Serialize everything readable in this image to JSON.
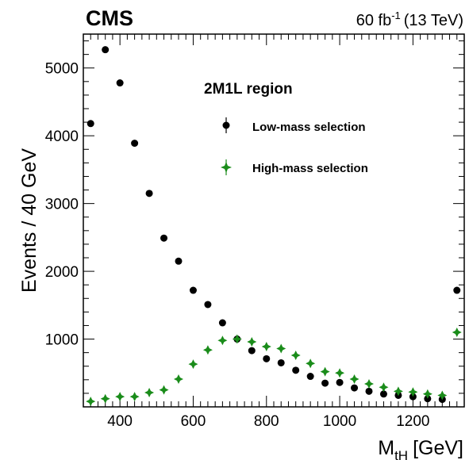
{
  "header": {
    "experiment": "CMS",
    "lumi_value": "60 fb",
    "lumi_exp": "-1",
    "energy": "(13 TeV)"
  },
  "chart_data": {
    "type": "scatter",
    "xlabel_main": "M",
    "xlabel_sub": "tH",
    "xlabel_unit": "[GeV]",
    "ylabel": "Events / 40 GeV",
    "xlim": [
      300,
      1340
    ],
    "ylim": [
      0,
      5500
    ],
    "x_ticks": [
      400,
      600,
      800,
      1000,
      1200
    ],
    "y_ticks": [
      1000,
      2000,
      3000,
      4000,
      5000
    ],
    "legend_title": "2M1L region",
    "legend_position": "top-right",
    "colors": {
      "low": "#000000",
      "high": "#1a8c1a"
    },
    "series": [
      {
        "name": "Low-mass selection",
        "key": "low",
        "x": [
          320,
          360,
          400,
          440,
          480,
          520,
          560,
          600,
          640,
          680,
          720,
          760,
          800,
          840,
          880,
          920,
          960,
          1000,
          1040,
          1080,
          1120,
          1160,
          1200,
          1240,
          1280,
          1320
        ],
        "y": [
          4180,
          5270,
          4780,
          3890,
          3150,
          2490,
          2150,
          1720,
          1510,
          1240,
          1000,
          830,
          710,
          650,
          540,
          450,
          350,
          360,
          280,
          230,
          190,
          170,
          150,
          120,
          110,
          1720
        ]
      },
      {
        "name": "High-mass selection",
        "key": "high",
        "x": [
          320,
          360,
          400,
          440,
          480,
          520,
          560,
          600,
          640,
          680,
          720,
          760,
          800,
          840,
          880,
          920,
          960,
          1000,
          1040,
          1080,
          1120,
          1160,
          1200,
          1240,
          1280,
          1320
        ],
        "y": [
          80,
          120,
          150,
          150,
          210,
          250,
          410,
          630,
          840,
          980,
          1000,
          960,
          890,
          860,
          760,
          640,
          520,
          500,
          410,
          340,
          290,
          230,
          220,
          190,
          170,
          1100
        ]
      }
    ]
  }
}
